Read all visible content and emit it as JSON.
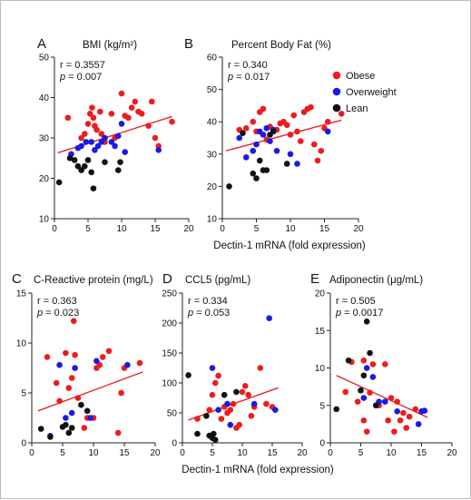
{
  "shared": {
    "xlabel_top": "Dectin-1 mRNA (fold expression)",
    "xlabel_bottom": "Dectin-1 mRNA (fold expression)",
    "legend": [
      {
        "label": "Obese",
        "color": "#ee1c1c"
      },
      {
        "label": "Overweight",
        "color": "#1a1ae6"
      },
      {
        "label": "Lean",
        "color": "#111111"
      }
    ],
    "fit_color": "#e8252a"
  },
  "chart_data": [
    {
      "type": "scatter",
      "panel": "A",
      "title": "BMI (kg/m²)",
      "stats": {
        "r": "r = 0.3557",
        "p_label": "p",
        "p_value": " = 0.007"
      },
      "xlim": [
        0,
        20
      ],
      "ylim": [
        10,
        50
      ],
      "xticks": [
        0,
        5,
        10,
        15,
        20
      ],
      "yticks": [
        10,
        20,
        30,
        40,
        50
      ],
      "fit": {
        "x": [
          0.5,
          17.5
        ],
        "y": [
          26.3,
          35.3
        ]
      },
      "series": [
        {
          "name": "Obese",
          "color": "#ee1c1c",
          "points": [
            [
              2,
              35
            ],
            [
              4,
              30
            ],
            [
              4.5,
              31
            ],
            [
              5,
              33.5
            ],
            [
              5.3,
              36
            ],
            [
              5.6,
              37.5
            ],
            [
              5.8,
              35
            ],
            [
              6,
              33
            ],
            [
              6.3,
              32
            ],
            [
              6.8,
              36.5
            ],
            [
              7,
              31
            ],
            [
              7.5,
              29
            ],
            [
              8.5,
              36
            ],
            [
              9,
              30
            ],
            [
              10,
              41
            ],
            [
              10.5,
              35.5
            ],
            [
              11,
              35
            ],
            [
              11.5,
              37.5
            ],
            [
              12,
              39
            ],
            [
              12.5,
              36.5
            ],
            [
              13,
              36
            ],
            [
              14,
              33
            ],
            [
              14.5,
              39
            ],
            [
              15,
              30
            ],
            [
              15.5,
              28
            ],
            [
              17.5,
              34
            ]
          ]
        },
        {
          "name": "Overweight",
          "color": "#1a1ae6",
          "points": [
            [
              2.5,
              26
            ],
            [
              3.5,
              27.5
            ],
            [
              4,
              28
            ],
            [
              4.7,
              29
            ],
            [
              5.5,
              29
            ],
            [
              6,
              27
            ],
            [
              6.5,
              28
            ],
            [
              7,
              29
            ],
            [
              7.5,
              30
            ],
            [
              8.5,
              29
            ],
            [
              9,
              28
            ],
            [
              9.5,
              30.5
            ],
            [
              10,
              33.5
            ],
            [
              10.5,
              26.5
            ],
            [
              15.5,
              27
            ]
          ]
        },
        {
          "name": "Lean",
          "color": "#111111",
          "points": [
            [
              0.7,
              19
            ],
            [
              2.3,
              25
            ],
            [
              3,
              24.5
            ],
            [
              3.5,
              23
            ],
            [
              4,
              22
            ],
            [
              4.5,
              23
            ],
            [
              5,
              24.5
            ],
            [
              5.5,
              21.5
            ],
            [
              5.8,
              17.5
            ],
            [
              7.5,
              24
            ],
            [
              9.5,
              22
            ],
            [
              9.8,
              24
            ]
          ]
        }
      ]
    },
    {
      "type": "scatter",
      "panel": "B",
      "title": "Percent Body Fat (%)",
      "stats": {
        "r": "r = 0.340",
        "p_label": "p",
        "p_value": " = 0.017"
      },
      "xlim": [
        0,
        20
      ],
      "ylim": [
        10,
        60
      ],
      "xticks": [
        0,
        5,
        10,
        15,
        20
      ],
      "yticks": [
        10,
        20,
        30,
        40,
        50,
        60
      ],
      "fit": {
        "x": [
          0.5,
          17.5
        ],
        "y": [
          31,
          40.5
        ]
      },
      "series": [
        {
          "name": "Obese",
          "color": "#ee1c1c",
          "points": [
            [
              2.5,
              37.5
            ],
            [
              3.5,
              38
            ],
            [
              4.5,
              40
            ],
            [
              5,
              37
            ],
            [
              5.5,
              43
            ],
            [
              6,
              44
            ],
            [
              6.5,
              34.5
            ],
            [
              7,
              38.5
            ],
            [
              8,
              37.5
            ],
            [
              8.5,
              39.5
            ],
            [
              9,
              40
            ],
            [
              9.5,
              39
            ],
            [
              10,
              36
            ],
            [
              10.5,
              42
            ],
            [
              11,
              37
            ],
            [
              11.5,
              34
            ],
            [
              12,
              43
            ],
            [
              12.5,
              44
            ],
            [
              13,
              44.5
            ],
            [
              13.5,
              33
            ],
            [
              14,
              28
            ],
            [
              14.5,
              31
            ],
            [
              15,
              38
            ],
            [
              15.5,
              40
            ],
            [
              17.5,
              42.5
            ]
          ]
        },
        {
          "name": "Overweight",
          "color": "#1a1ae6",
          "points": [
            [
              2.5,
              35
            ],
            [
              3.5,
              29
            ],
            [
              4.5,
              31
            ],
            [
              5,
              33
            ],
            [
              5.5,
              37
            ],
            [
              6,
              36
            ],
            [
              6.5,
              38
            ],
            [
              7,
              34
            ],
            [
              7.5,
              37.5
            ],
            [
              8,
              31
            ],
            [
              10,
              30
            ],
            [
              11,
              27
            ],
            [
              15.5,
              37
            ]
          ]
        },
        {
          "name": "Lean",
          "color": "#111111",
          "points": [
            [
              1,
              20
            ],
            [
              3,
              36.5
            ],
            [
              4.5,
              24
            ],
            [
              5,
              22.5
            ],
            [
              5.5,
              28
            ],
            [
              6,
              25
            ],
            [
              6.5,
              25
            ],
            [
              7,
              36
            ],
            [
              7.5,
              37
            ],
            [
              9.5,
              27
            ]
          ]
        }
      ]
    },
    {
      "type": "scatter",
      "panel": "C",
      "title": "C-Reactive protein (mg/L)",
      "stats": {
        "r": "r = 0.363",
        "p_label": "p",
        "p_value": " = 0.023"
      },
      "xlim": [
        0,
        20
      ],
      "ylim": [
        0,
        15
      ],
      "xticks": [
        0,
        5,
        10,
        15,
        20
      ],
      "yticks": [
        0,
        5,
        10,
        15
      ],
      "fit": {
        "x": [
          1,
          18
        ],
        "y": [
          3.2,
          7.1
        ]
      },
      "series": [
        {
          "name": "Obese",
          "color": "#ee1c1c",
          "points": [
            [
              2.5,
              8.6
            ],
            [
              4,
              6
            ],
            [
              4.5,
              4.2
            ],
            [
              5.5,
              9
            ],
            [
              6,
              5.5
            ],
            [
              6.5,
              6.5
            ],
            [
              6.8,
              12.2
            ],
            [
              7,
              8.8
            ],
            [
              7.5,
              4.5
            ],
            [
              8.5,
              1.5
            ],
            [
              9,
              2.5
            ],
            [
              10,
              2.5
            ],
            [
              10.5,
              7.5
            ],
            [
              11,
              7.8
            ],
            [
              11.5,
              8.6
            ],
            [
              12.5,
              9.2
            ],
            [
              14,
              1
            ],
            [
              14.5,
              5
            ],
            [
              15,
              7.5
            ],
            [
              17.5,
              8
            ]
          ]
        },
        {
          "name": "Overweight",
          "color": "#1a1ae6",
          "points": [
            [
              3,
              0.7
            ],
            [
              4.5,
              7.8
            ],
            [
              5.5,
              2.5
            ],
            [
              6.5,
              3
            ],
            [
              7,
              7.5
            ],
            [
              9.5,
              2.5
            ],
            [
              10.5,
              8.2
            ],
            [
              15.5,
              7.8
            ]
          ]
        },
        {
          "name": "Lean",
          "color": "#111111",
          "points": [
            [
              1.5,
              1.4
            ],
            [
              3,
              0.6
            ],
            [
              5,
              1.6
            ],
            [
              5.5,
              1.8
            ],
            [
              6,
              1
            ],
            [
              6.5,
              1.5
            ],
            [
              8,
              3.8
            ],
            [
              9,
              3.2
            ]
          ]
        }
      ]
    },
    {
      "type": "scatter",
      "panel": "D",
      "title": "CCL5 (pg/mL)",
      "stats": {
        "r": "r = 0.334",
        "p_label": "p",
        "p_value": " = 0.053"
      },
      "xlim": [
        0,
        20
      ],
      "ylim": [
        0,
        250
      ],
      "xticks": [
        0,
        5,
        10,
        15,
        20
      ],
      "yticks": [
        0,
        50,
        100,
        150,
        200,
        250
      ],
      "fit": {
        "x": [
          1,
          16
        ],
        "y": [
          38,
          92
        ]
      },
      "series": [
        {
          "name": "Obese",
          "color": "#ee1c1c",
          "points": [
            [
              2.5,
              40
            ],
            [
              4.5,
              55
            ],
            [
              5,
              80
            ],
            [
              5.5,
              100
            ],
            [
              6,
              112
            ],
            [
              6.5,
              40
            ],
            [
              7,
              60
            ],
            [
              7.5,
              50
            ],
            [
              8,
              55
            ],
            [
              8.5,
              65
            ],
            [
              9,
              25
            ],
            [
              9.5,
              30
            ],
            [
              10,
              85
            ],
            [
              10.5,
              95
            ],
            [
              11,
              80
            ],
            [
              11.5,
              45
            ],
            [
              12,
              60
            ],
            [
              13,
              125
            ],
            [
              14,
              65
            ],
            [
              15,
              60
            ]
          ]
        },
        {
          "name": "Overweight",
          "color": "#1a1ae6",
          "points": [
            [
              5,
              125
            ],
            [
              6,
              55
            ],
            [
              7.5,
              65
            ],
            [
              8,
              30
            ],
            [
              12,
              65
            ],
            [
              14.5,
              208
            ],
            [
              15.5,
              55
            ]
          ]
        },
        {
          "name": "Lean",
          "color": "#111111",
          "points": [
            [
              1,
              113
            ],
            [
              2.5,
              15
            ],
            [
              4,
              45
            ],
            [
              4.5,
              12
            ],
            [
              5,
              8
            ],
            [
              5.2,
              15
            ],
            [
              5.5,
              5
            ],
            [
              7,
              80
            ],
            [
              9,
              85
            ]
          ]
        }
      ]
    },
    {
      "type": "scatter",
      "panel": "E",
      "title": "Adiponectin (μg/mL)",
      "stats": {
        "r": "r = 0.505",
        "p_label": "p",
        "p_value": " = 0.0017"
      },
      "xlim": [
        0,
        20
      ],
      "ylim": [
        0,
        20
      ],
      "xticks": [
        0,
        5,
        10,
        15,
        20
      ],
      "yticks": [
        0,
        5,
        10,
        15,
        20
      ],
      "fit": {
        "x": [
          1,
          16
        ],
        "y": [
          9,
          3.4
        ]
      },
      "series": [
        {
          "name": "Obese",
          "color": "#ee1c1c",
          "points": [
            [
              2.5,
              6.8
            ],
            [
              3.5,
              10.8
            ],
            [
              4.5,
              5.5
            ],
            [
              5.5,
              11
            ],
            [
              5.5,
              3
            ],
            [
              6,
              1.5
            ],
            [
              6.5,
              6.7
            ],
            [
              7,
              10.5
            ],
            [
              8,
              5
            ],
            [
              9,
              10.5
            ],
            [
              9.5,
              3
            ],
            [
              10,
              6
            ],
            [
              10.5,
              1.5
            ],
            [
              11,
              5.5
            ],
            [
              11.5,
              3
            ],
            [
              12,
              4
            ],
            [
              12.5,
              2
            ],
            [
              13,
              3.5
            ],
            [
              14,
              4.5
            ],
            [
              15,
              4.2
            ]
          ]
        },
        {
          "name": "Overweight",
          "color": "#1a1ae6",
          "points": [
            [
              5.5,
              6
            ],
            [
              6,
              10
            ],
            [
              7,
              8.8
            ],
            [
              8,
              5.5
            ],
            [
              9,
              5.5
            ],
            [
              11,
              4.2
            ],
            [
              15,
              4.2
            ],
            [
              15.5,
              4.3
            ],
            [
              14.5,
              2.5
            ]
          ]
        },
        {
          "name": "Lean",
          "color": "#111111",
          "points": [
            [
              1,
              4.5
            ],
            [
              3,
              11
            ],
            [
              5,
              7
            ],
            [
              5.5,
              9
            ],
            [
              6,
              16.2
            ],
            [
              6.5,
              12
            ],
            [
              7.5,
              5
            ]
          ]
        }
      ]
    }
  ]
}
